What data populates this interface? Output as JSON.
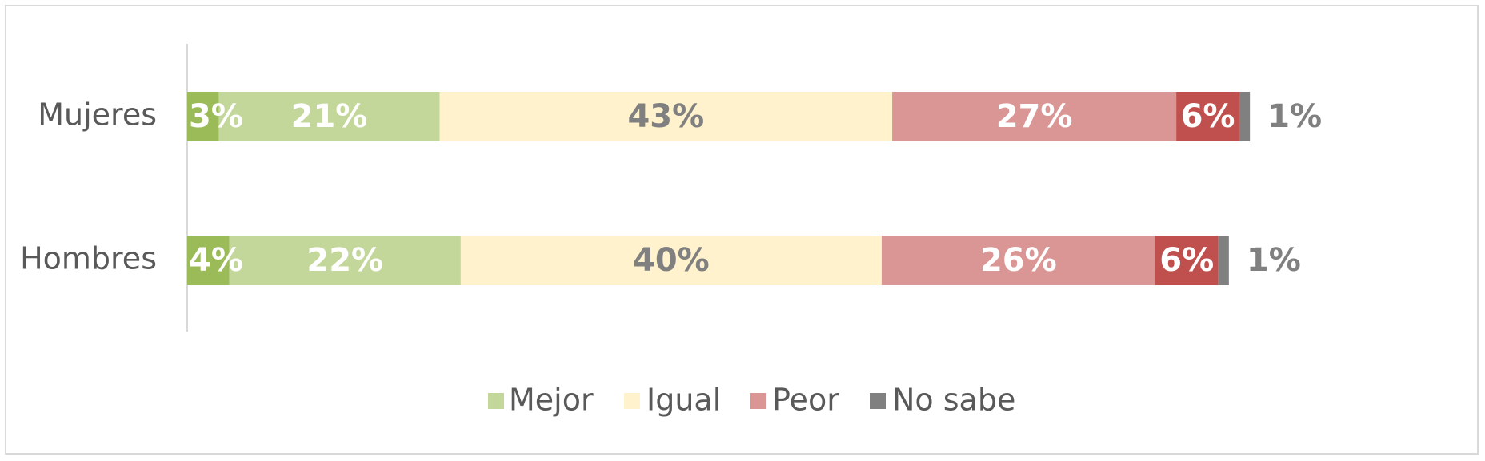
{
  "chart_data": {
    "type": "bar",
    "orientation": "horizontal",
    "stacked": true,
    "categories": [
      "Mujeres",
      "Hombres"
    ],
    "series": [
      {
        "name": "Mejor",
        "color": "#9bbb59",
        "values": [
          3,
          4
        ],
        "labels": [
          "3%",
          "4%"
        ]
      },
      {
        "name": "Mejor",
        "color": "#c4d79b",
        "values": [
          21,
          22
        ],
        "labels": [
          "21%",
          "22%"
        ]
      },
      {
        "name": "Igual",
        "color": "#fff2cc",
        "values": [
          43,
          40
        ],
        "labels": [
          "43%",
          "40%"
        ]
      },
      {
        "name": "Peor",
        "color": "#da9694",
        "values": [
          27,
          26
        ],
        "labels": [
          "27%",
          "26%"
        ]
      },
      {
        "name": "Peor",
        "color": "#c0504d",
        "values": [
          6,
          6
        ],
        "labels": [
          "6%",
          "6%"
        ]
      },
      {
        "name": "No sabe",
        "color": "#808080",
        "values": [
          1,
          1
        ],
        "labels": [
          "1%",
          "1%"
        ]
      }
    ],
    "xlim": [
      0,
      100
    ],
    "grid": false,
    "legend": {
      "position": "bottom",
      "entries": [
        {
          "name": "Mejor",
          "color": "#c4d79b"
        },
        {
          "name": "Igual",
          "color": "#fff2cc"
        },
        {
          "name": "Peor",
          "color": "#da9694"
        },
        {
          "name": "No sabe",
          "color": "#808080"
        }
      ]
    }
  }
}
